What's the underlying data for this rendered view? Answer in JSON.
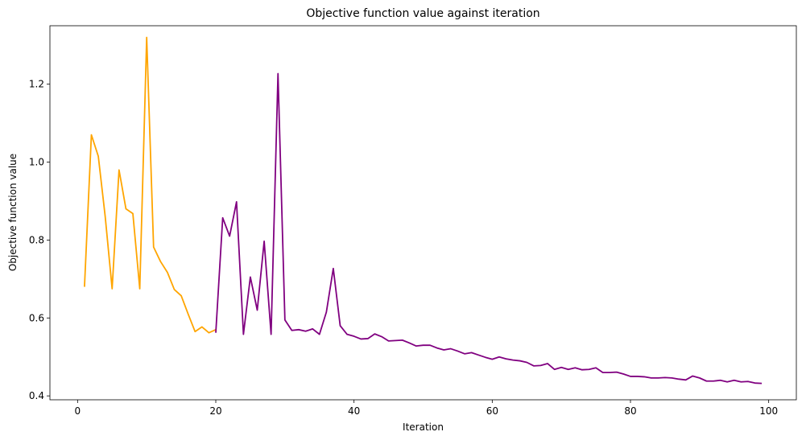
{
  "chart_data": {
    "type": "line",
    "title": "Objective function value against iteration",
    "xlabel": "Iteration",
    "ylabel": "Objective function value",
    "xlim": [
      -4,
      104
    ],
    "ylim": [
      0.39,
      1.35
    ],
    "xticks": [
      0,
      20,
      40,
      60,
      80,
      100
    ],
    "yticks": [
      0.4,
      0.6,
      0.8,
      1.0,
      1.2
    ],
    "xtick_labels": [
      "0",
      "20",
      "40",
      "60",
      "80",
      "100"
    ],
    "ytick_labels": [
      "0.4",
      "0.6",
      "0.8",
      "1.0",
      "1.2"
    ],
    "grid": false,
    "series": [
      {
        "color": "#ffa500",
        "x": [
          1,
          2,
          3,
          4,
          5,
          6,
          7,
          8,
          9,
          10,
          11,
          12,
          13,
          14,
          15,
          16,
          17,
          18,
          19,
          20
        ],
        "y": [
          0.68,
          1.07,
          1.015,
          0.86,
          0.675,
          0.98,
          0.88,
          0.868,
          0.675,
          1.32,
          0.782,
          0.745,
          0.717,
          0.673,
          0.657,
          0.61,
          0.565,
          0.577,
          0.562,
          0.57
        ]
      },
      {
        "color": "#800080",
        "x": [
          20,
          21,
          22,
          23,
          24,
          25,
          26,
          27,
          28,
          29,
          30,
          31,
          32,
          33,
          34,
          35,
          36,
          37,
          38,
          39,
          40,
          41,
          42,
          43,
          44,
          45,
          46,
          47,
          48,
          49,
          50,
          51,
          52,
          53,
          54,
          55,
          56,
          57,
          58,
          59,
          60,
          61,
          62,
          63,
          64,
          65,
          66,
          67,
          68,
          69,
          70,
          71,
          72,
          73,
          74,
          75,
          76,
          77,
          78,
          79,
          80,
          81,
          82,
          83,
          84,
          85,
          86,
          87,
          88,
          89,
          90,
          91,
          92,
          93,
          94,
          95,
          96,
          97,
          98,
          99
        ],
        "y": [
          0.562,
          0.857,
          0.81,
          0.898,
          0.558,
          0.705,
          0.62,
          0.797,
          0.558,
          1.227,
          0.595,
          0.568,
          0.57,
          0.566,
          0.572,
          0.558,
          0.615,
          0.727,
          0.58,
          0.558,
          0.553,
          0.546,
          0.547,
          0.559,
          0.552,
          0.541,
          0.542,
          0.543,
          0.536,
          0.528,
          0.53,
          0.53,
          0.523,
          0.518,
          0.521,
          0.515,
          0.508,
          0.511,
          0.505,
          0.499,
          0.494,
          0.5,
          0.495,
          0.492,
          0.49,
          0.486,
          0.477,
          0.478,
          0.483,
          0.468,
          0.473,
          0.468,
          0.472,
          0.467,
          0.468,
          0.472,
          0.46,
          0.46,
          0.461,
          0.456,
          0.45,
          0.45,
          0.449,
          0.446,
          0.446,
          0.447,
          0.446,
          0.443,
          0.441,
          0.451,
          0.446,
          0.438,
          0.438,
          0.44,
          0.436,
          0.44,
          0.436,
          0.437,
          0.433,
          0.432
        ]
      }
    ]
  }
}
